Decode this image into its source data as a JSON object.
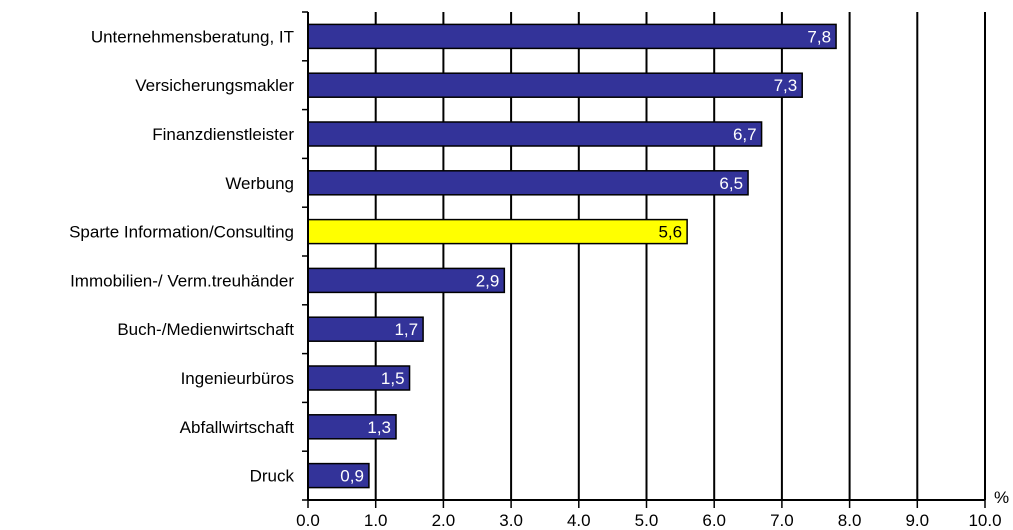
{
  "chart_data": {
    "type": "bar",
    "orientation": "horizontal",
    "categories": [
      "Unternehmensberatung, IT",
      "Versicherungsmakler",
      "Finanzdienstleister",
      "Werbung",
      "Sparte Information/Consulting",
      "Immobilien-/ Verm.treuhänder",
      "Buch-/Medienwirtschaft",
      "Ingenieurbüros",
      "Abfallwirtschaft",
      "Druck"
    ],
    "values": [
      7.8,
      7.3,
      6.7,
      6.5,
      5.6,
      2.9,
      1.7,
      1.5,
      1.3,
      0.9
    ],
    "value_labels": [
      "7,8",
      "7,3",
      "6,7",
      "6,5",
      "5,6",
      "2,9",
      "1,7",
      "1,5",
      "1,3",
      "0,9"
    ],
    "highlight_index": 4,
    "xlim": [
      0,
      10
    ],
    "x_ticks": [
      "0.0",
      "1.0",
      "2.0",
      "3.0",
      "4.0",
      "5.0",
      "6.0",
      "7.0",
      "8.0",
      "9.0",
      "10.0"
    ],
    "x_unit": "%",
    "grid": "vertical",
    "colors": {
      "bar": "#333399",
      "highlight": "#ffff00",
      "bar_label": "#ffffff",
      "highlight_label": "#000000",
      "grid": "#000000"
    }
  }
}
